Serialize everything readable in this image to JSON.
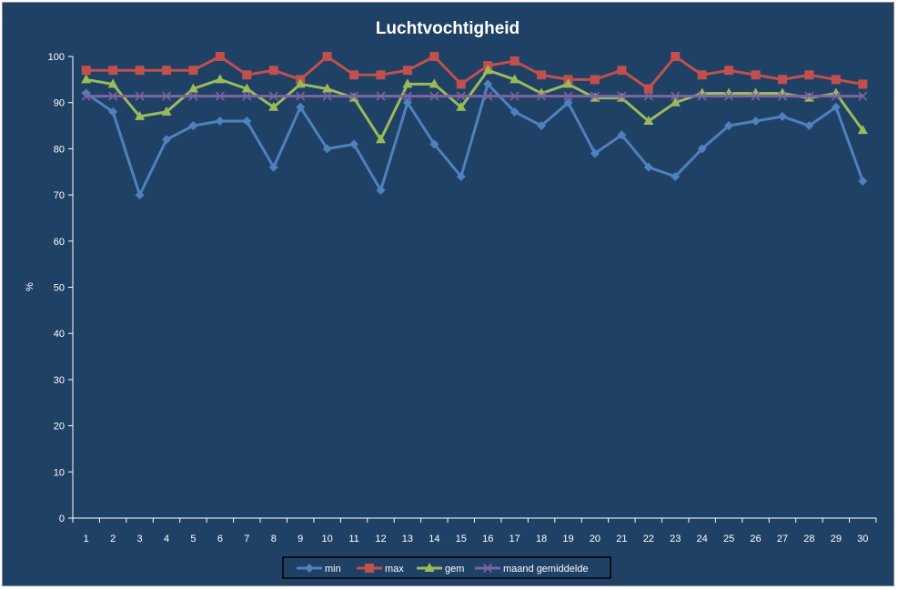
{
  "chart_data": {
    "type": "line",
    "title": "Luchtvochtigheid",
    "xlabel": "",
    "ylabel": "%",
    "ylim": [
      0,
      100
    ],
    "yticks": [
      0,
      10,
      20,
      30,
      40,
      50,
      60,
      70,
      80,
      90,
      100
    ],
    "categories": [
      "1",
      "2",
      "3",
      "4",
      "5",
      "6",
      "7",
      "8",
      "9",
      "10",
      "11",
      "12",
      "13",
      "14",
      "15",
      "16",
      "17",
      "18",
      "19",
      "20",
      "21",
      "22",
      "23",
      "24",
      "25",
      "26",
      "27",
      "28",
      "29",
      "30"
    ],
    "grid": false,
    "legend_position": "bottom",
    "series": [
      {
        "name": "min",
        "color": "#4f81bd",
        "marker": "diamond",
        "values": [
          92,
          88,
          70,
          82,
          85,
          86,
          86,
          76,
          89,
          80,
          81,
          71,
          90,
          81,
          74,
          94,
          88,
          85,
          90,
          79,
          83,
          76,
          74,
          80,
          85,
          86,
          87,
          85,
          89,
          73
        ]
      },
      {
        "name": "max",
        "color": "#c0504d",
        "marker": "square",
        "values": [
          97,
          97,
          97,
          97,
          97,
          100,
          96,
          97,
          95,
          100,
          96,
          96,
          97,
          100,
          94,
          98,
          99,
          96,
          95,
          95,
          97,
          93,
          100,
          96,
          97,
          96,
          95,
          96,
          95,
          94
        ]
      },
      {
        "name": "gem",
        "color": "#9bbb59",
        "marker": "triangle",
        "values": [
          95,
          94,
          87,
          88,
          93,
          95,
          93,
          89,
          94,
          93,
          91,
          82,
          94,
          94,
          89,
          97,
          95,
          92,
          94,
          91,
          91,
          86,
          90,
          92,
          92,
          92,
          92,
          91,
          92,
          84
        ]
      },
      {
        "name": "maand gemiddelde",
        "color": "#8064a2",
        "marker": "x",
        "values": [
          91.4,
          91.4,
          91.4,
          91.4,
          91.4,
          91.4,
          91.4,
          91.4,
          91.4,
          91.4,
          91.4,
          91.4,
          91.4,
          91.4,
          91.4,
          91.4,
          91.4,
          91.4,
          91.4,
          91.4,
          91.4,
          91.4,
          91.4,
          91.4,
          91.4,
          91.4,
          91.4,
          91.4,
          91.4,
          91.4
        ]
      }
    ]
  }
}
